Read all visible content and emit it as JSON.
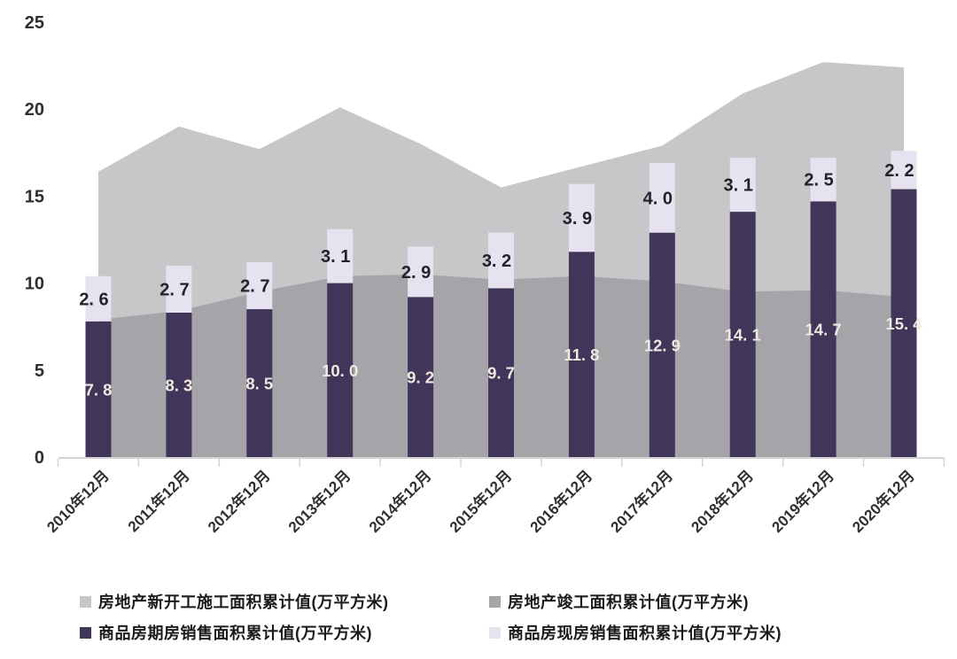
{
  "chart_data": {
    "type": "bar",
    "subtype": "stacked-bar-with-background-areas",
    "title": "",
    "xlabel": "",
    "ylabel": "",
    "categories": [
      "2010年12月",
      "2011年12月",
      "2012年12月",
      "2013年12月",
      "2014年12月",
      "2015年12月",
      "2016年12月",
      "2017年12月",
      "2018年12月",
      "2019年12月",
      "2020年12月"
    ],
    "ylim": [
      0,
      25
    ],
    "yticks": [
      0,
      5,
      10,
      15,
      20,
      25
    ],
    "grid": false,
    "legend_position": "bottom",
    "series": [
      {
        "name": "房地产新开工施工面积累计值(万平方米)",
        "render": "area",
        "color": "#c7c6c8",
        "values": [
          16.4,
          19.0,
          17.7,
          20.1,
          18.0,
          15.5,
          16.7,
          17.9,
          20.9,
          22.7,
          22.4
        ],
        "labels_shown": false
      },
      {
        "name": "房地产竣工面积累计值(万平方米)",
        "render": "area",
        "color": "#a5a4a8",
        "values": [
          7.9,
          8.4,
          9.5,
          10.4,
          10.5,
          10.2,
          10.4,
          10.1,
          9.5,
          9.6,
          9.2
        ],
        "labels_shown": false
      },
      {
        "name": "商品房期房销售面积累计值(万平方米)",
        "render": "bar",
        "stack": "sales",
        "color": "#41365a",
        "label_color": "#efe9e1",
        "values": [
          7.8,
          8.3,
          8.5,
          10.0,
          9.2,
          9.7,
          11.8,
          12.9,
          14.1,
          14.7,
          15.4
        ],
        "labels_shown": true
      },
      {
        "name": "商品房现房销售面积累计值(万平方米)",
        "render": "bar",
        "stack": "sales",
        "color": "#e7e2f0",
        "label_color": "#23222b",
        "values": [
          2.6,
          2.7,
          2.7,
          3.1,
          2.9,
          3.2,
          3.9,
          4.0,
          3.1,
          2.5,
          2.2
        ],
        "labels_shown": true
      }
    ],
    "axis_text_color": "#2e2e33",
    "axis_line_color": "#d4d3d6"
  }
}
